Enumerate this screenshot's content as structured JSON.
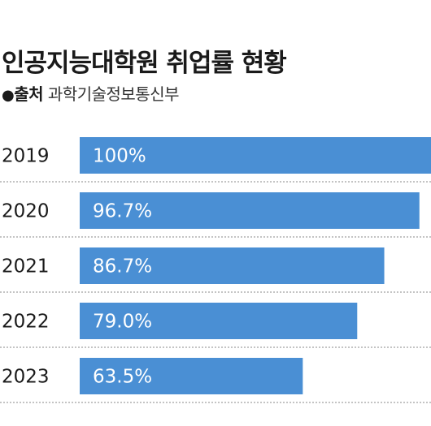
{
  "title": "인공지능대학원 취업률 현황",
  "source": {
    "bullet": "●",
    "label": "출처",
    "value": "과학기술정보통신부"
  },
  "colors": {
    "bar": "#4a8fd4",
    "bar_text": "#ffffff",
    "divider": "#888888",
    "label": "#1a1a1a"
  },
  "chart_data": {
    "type": "bar",
    "orientation": "horizontal",
    "categories": [
      "2019",
      "2020",
      "2021",
      "2022",
      "2023"
    ],
    "values": [
      100,
      96.7,
      86.7,
      79.0,
      63.5
    ],
    "value_labels": [
      "100%",
      "96.7%",
      "86.7%",
      "79.0%",
      "63.5%"
    ],
    "title": "인공지능대학원 취업률 현황",
    "unit": "%",
    "xlim": [
      0,
      100
    ],
    "grid": false,
    "legend": "none"
  }
}
